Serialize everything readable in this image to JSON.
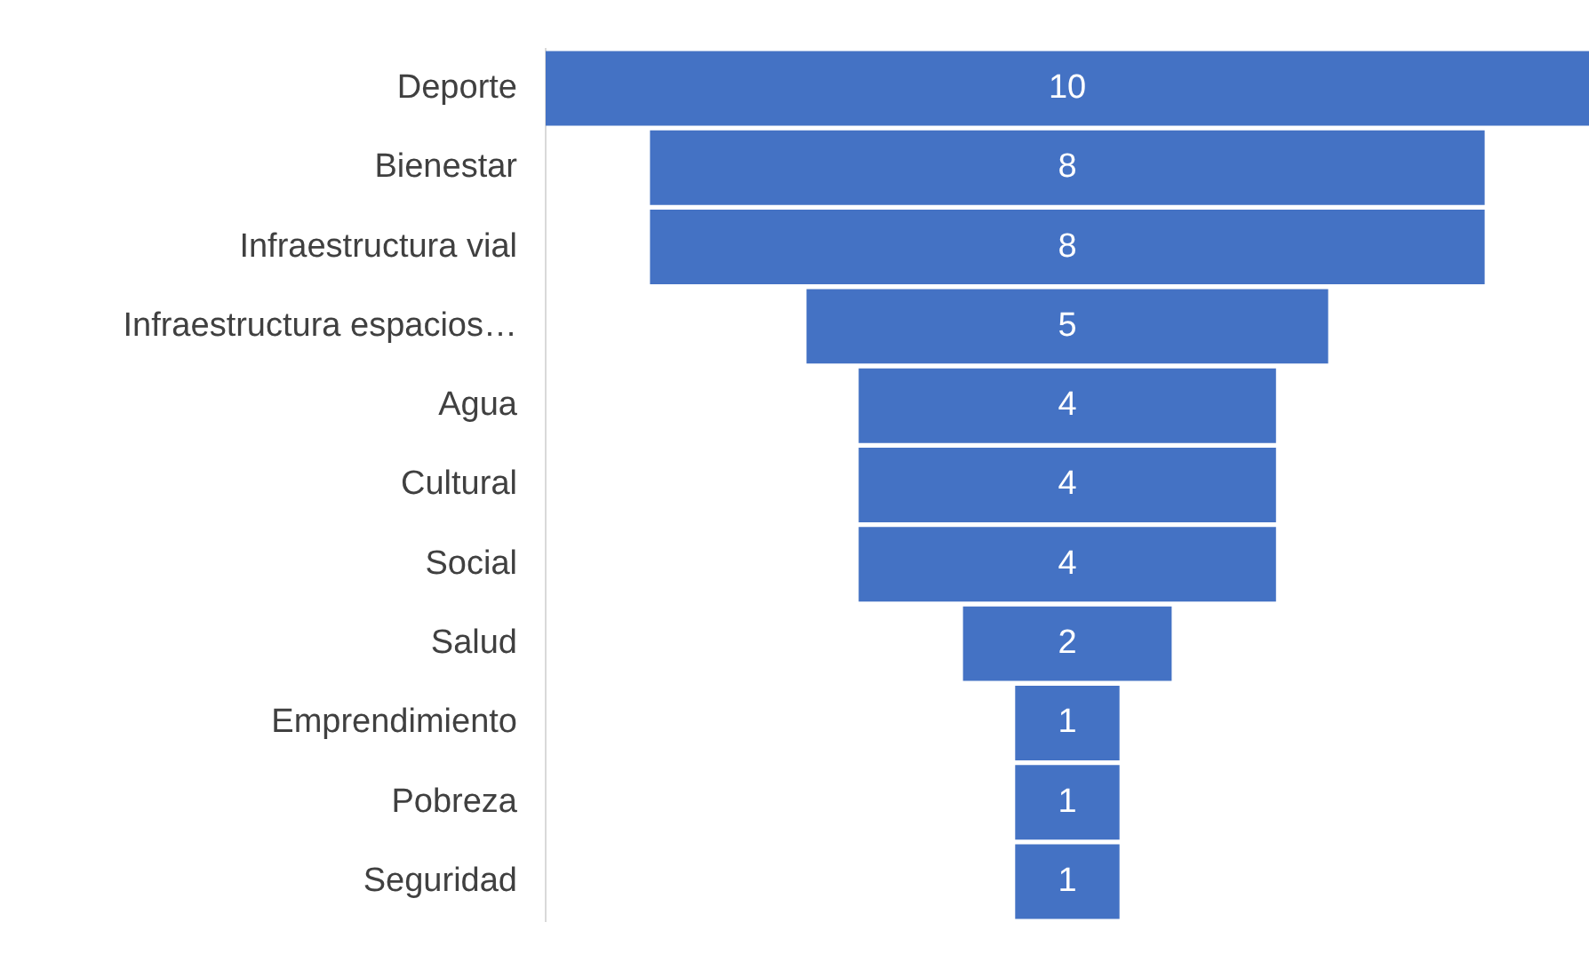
{
  "chart_data": {
    "type": "other",
    "categories": [
      "Deporte",
      "Bienestar",
      "Infraestructura vial",
      "Infraestructura espacios…",
      "Agua",
      "Cultural",
      "Social",
      "Salud",
      "Emprendimiento",
      "Pobreza",
      "Seguridad"
    ],
    "values": [
      10,
      8,
      8,
      5,
      4,
      4,
      4,
      2,
      1,
      1,
      1
    ],
    "color": "#4472c4",
    "data_labels": true
  }
}
